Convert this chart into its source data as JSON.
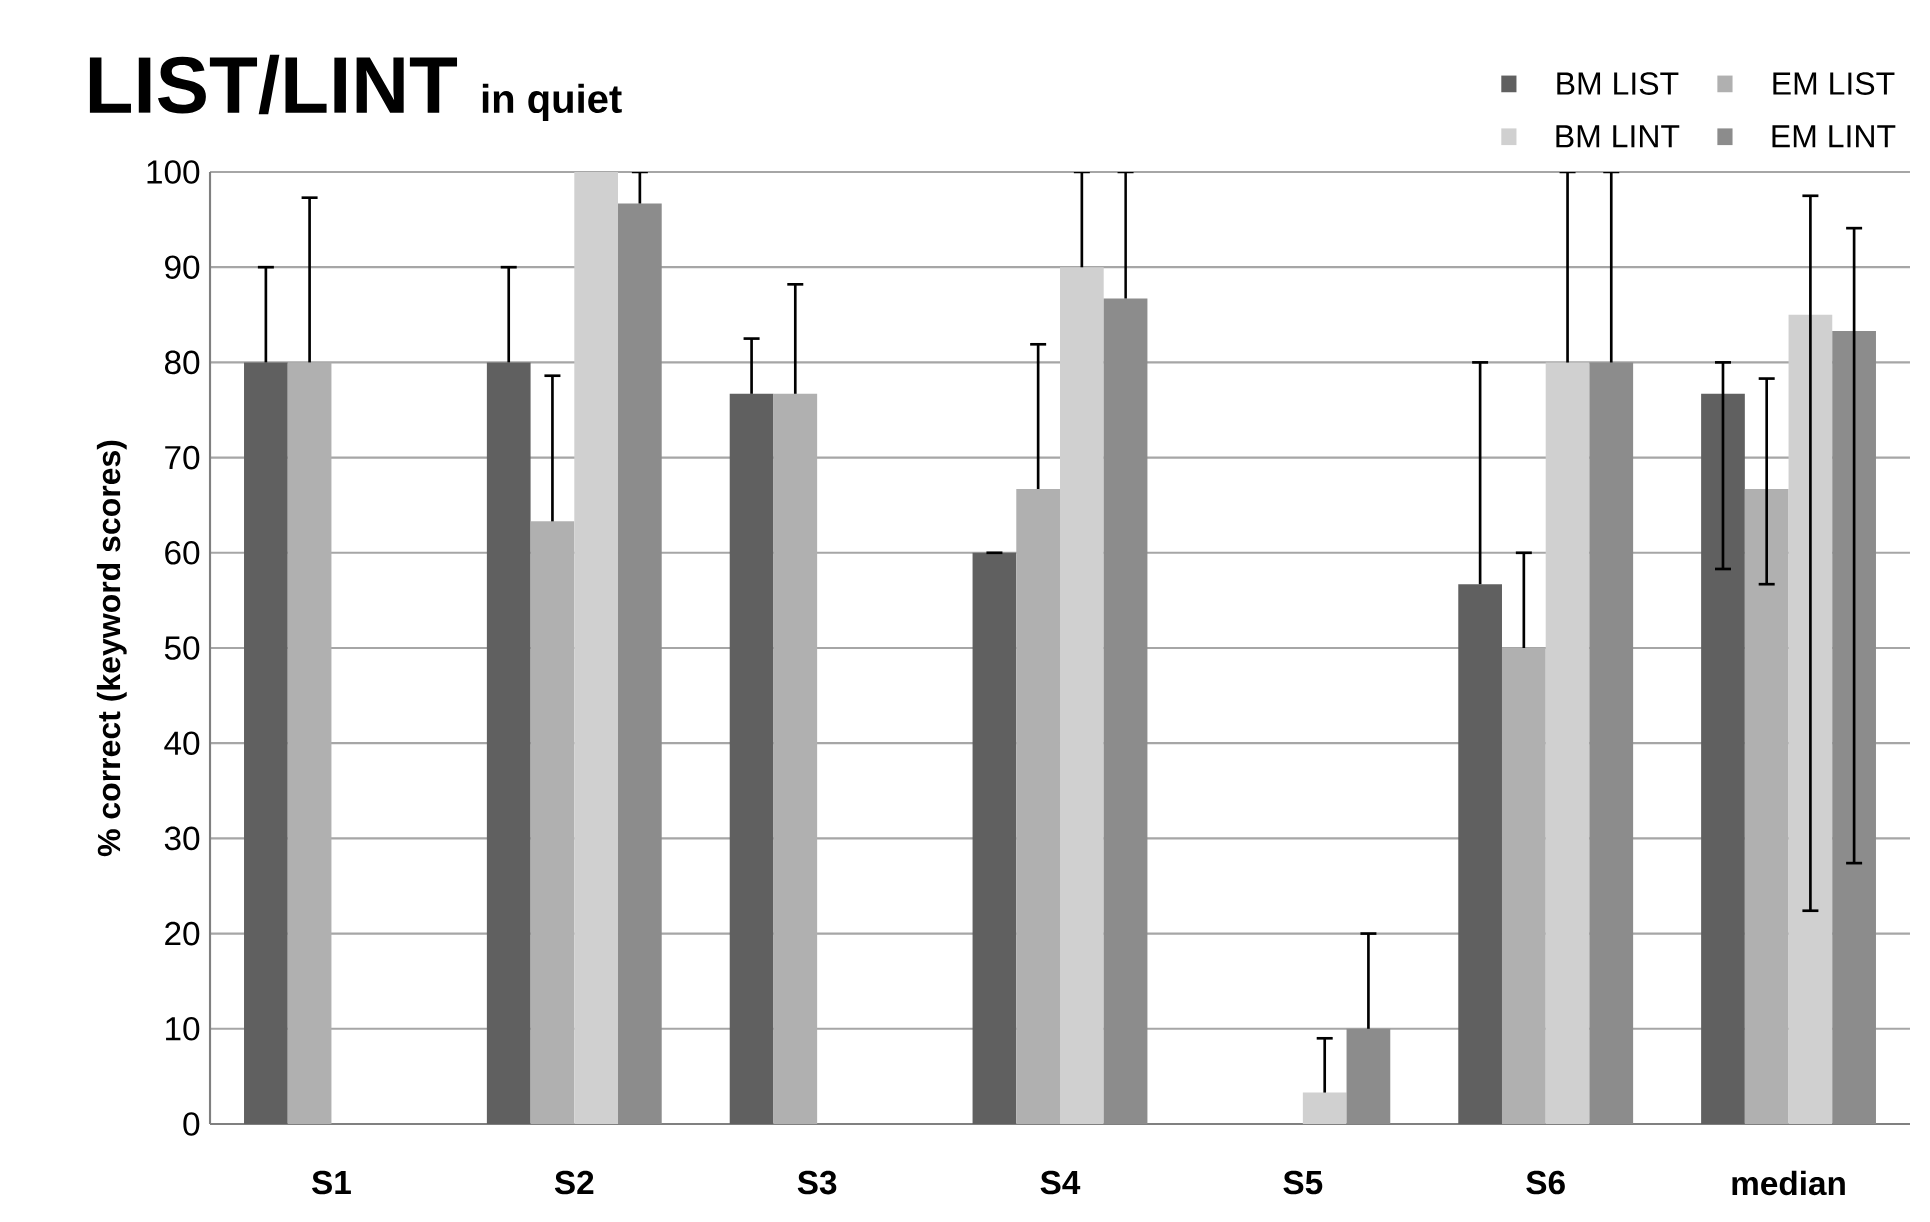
{
  "chart_data": {
    "type": "bar",
    "title": "LIST/LINT",
    "subtitle": "in quiet",
    "ylabel": "% correct (keyword scores)",
    "categories": [
      "S1",
      "S2",
      "S3",
      "S4",
      "S5",
      "S6",
      "median"
    ],
    "series": [
      {
        "name": "BM LIST",
        "color": "#606060",
        "values": [
          80,
          80,
          76.7,
          60,
          null,
          56.7,
          76.7
        ],
        "errors": [
          [
            80,
            90
          ],
          [
            80,
            90
          ],
          [
            76.7,
            82.5
          ],
          [
            60,
            60
          ],
          null,
          [
            56.7,
            80
          ],
          [
            58.3,
            80
          ]
        ]
      },
      {
        "name": "EM LIST",
        "color": "#b0b0b0",
        "values": [
          80,
          63.3,
          76.7,
          66.7,
          null,
          50,
          66.7
        ],
        "errors": [
          [
            80,
            97.3
          ],
          [
            63.3,
            78.6
          ],
          [
            76.7,
            88.2
          ],
          [
            66.7,
            81.9
          ],
          null,
          [
            50,
            60
          ],
          [
            56.7,
            78.3
          ]
        ]
      },
      {
        "name": "BM LINT",
        "color": "#d0d0d0",
        "values": [
          null,
          100,
          null,
          90,
          3.3,
          80,
          85
        ],
        "errors": [
          null,
          null,
          null,
          [
            90,
            100
          ],
          [
            3.3,
            9
          ],
          [
            80,
            100
          ],
          [
            22.4,
            97.5
          ]
        ]
      },
      {
        "name": "EM LINT",
        "color": "#8c8c8c",
        "values": [
          null,
          96.7,
          null,
          86.7,
          10,
          80,
          83.3
        ],
        "errors": [
          null,
          [
            96.7,
            100
          ],
          null,
          [
            86.7,
            100
          ],
          [
            10,
            20
          ],
          [
            80,
            100
          ],
          [
            27.4,
            94.1
          ]
        ]
      }
    ],
    "ylim": [
      0,
      100
    ],
    "yticks": [
      0,
      10,
      20,
      30,
      40,
      50,
      60,
      70,
      80,
      90,
      100
    ],
    "grid": "y",
    "legend": "top right"
  }
}
